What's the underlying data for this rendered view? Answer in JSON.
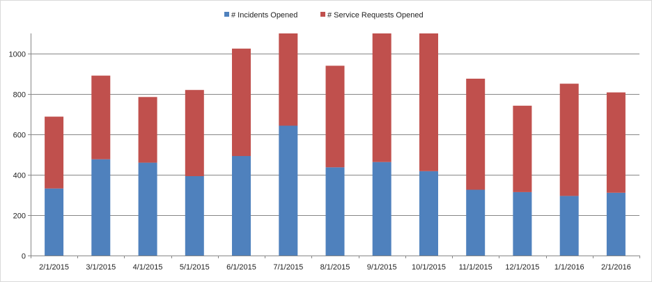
{
  "chart_data": {
    "type": "bar",
    "stacked": true,
    "categories": [
      "2/1/2015",
      "3/1/2015",
      "4/1/2015",
      "5/1/2015",
      "6/1/2015",
      "7/1/2015",
      "8/1/2015",
      "9/1/2015",
      "10/1/2015",
      "11/1/2015",
      "12/1/2015",
      "1/1/2016",
      "2/1/2016"
    ],
    "series": [
      {
        "name": "# Incidents Opened",
        "color": "#4f81bd",
        "values": [
          332,
          477,
          460,
          393,
          493,
          643,
          437,
          463,
          418,
          326,
          314,
          295,
          311
        ]
      },
      {
        "name": "# Service Requests Opened",
        "color": "#c0504d",
        "values": [
          356,
          414,
          325,
          427,
          532,
          457,
          503,
          637,
          682,
          550,
          428,
          556,
          497
        ]
      }
    ],
    "title": "",
    "xlabel": "",
    "ylabel": "",
    "ylim": [
      0,
      1100
    ],
    "yticks": [
      0,
      200,
      400,
      600,
      800,
      1000
    ],
    "grid": true,
    "legend": "top-center"
  }
}
